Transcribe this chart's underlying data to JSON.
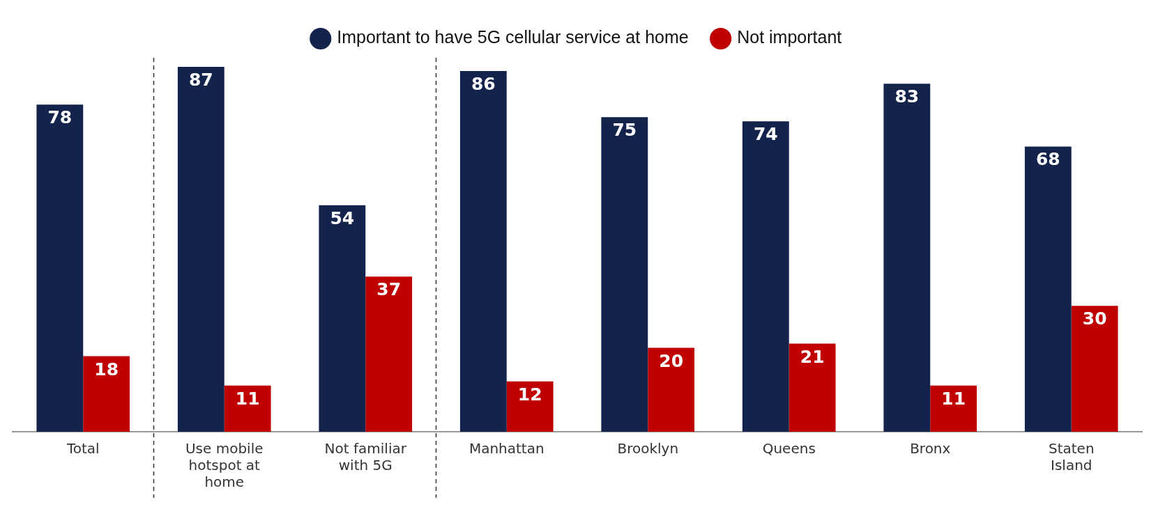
{
  "chart_data": {
    "type": "bar",
    "categories": [
      "Total",
      "Use mobile hotspot at home",
      "Not familiar with 5G",
      "Manhattan",
      "Brooklyn",
      "Queens",
      "Bronx",
      "Staten Island"
    ],
    "series": [
      {
        "name": "Important to have 5G cellular service at home",
        "color": "#14234b",
        "values": [
          78,
          87,
          54,
          86,
          75,
          74,
          83,
          68
        ]
      },
      {
        "name": "Not important",
        "color": "#c00000",
        "values": [
          18,
          11,
          37,
          12,
          20,
          21,
          11,
          30
        ]
      }
    ],
    "data_labels": true,
    "legend": "top",
    "tick_labels": "x"
  }
}
